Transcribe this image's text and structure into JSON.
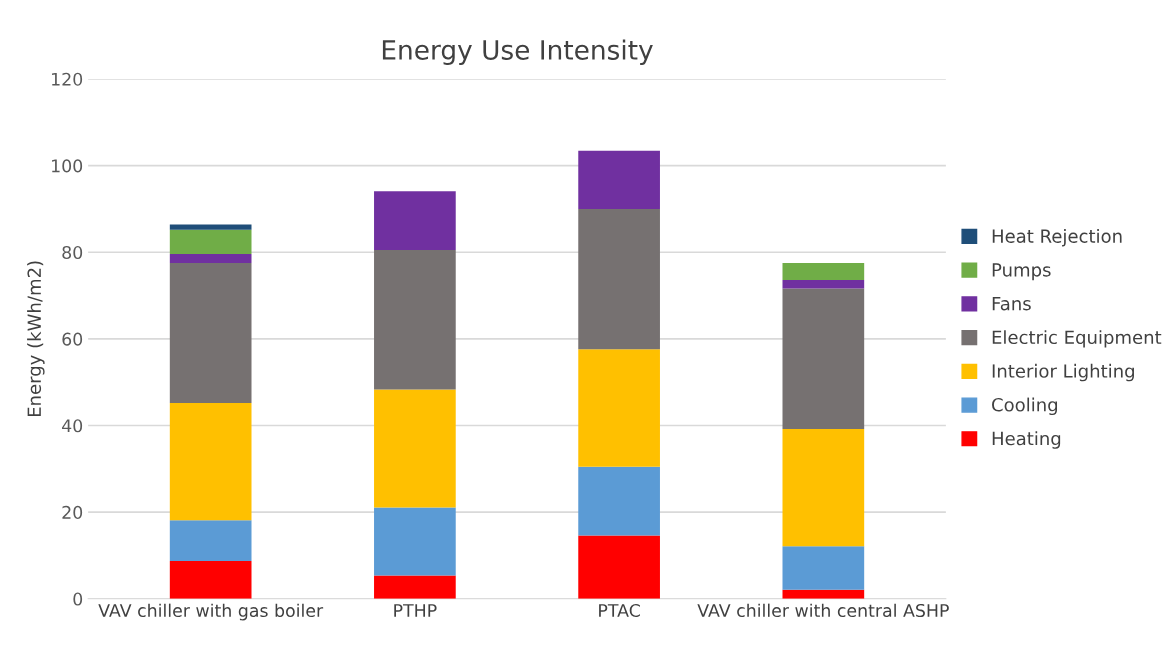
{
  "chart_data": {
    "type": "bar",
    "title": "Energy Use Intensity",
    "ylabel": "Energy (kWh/m2)",
    "stacked": true,
    "categories": [
      "VAV chiller with gas boiler",
      "PTHP",
      "PTAC",
      "VAV chiller with central ASHP"
    ],
    "series": [
      {
        "name": "Heating",
        "color": "#ff0000",
        "values": [
          8.7,
          5.4,
          14.6,
          2.1
        ]
      },
      {
        "name": "Cooling",
        "color": "#5b9bd5",
        "values": [
          9.4,
          15.7,
          15.9,
          10.0
        ]
      },
      {
        "name": "Interior Lighting",
        "color": "#ffc000",
        "values": [
          27.1,
          27.2,
          27.1,
          27.1
        ]
      },
      {
        "name": "Electric Equipment",
        "color": "#767171",
        "values": [
          32.3,
          32.2,
          32.4,
          32.4
        ]
      },
      {
        "name": "Fans",
        "color": "#7030a0",
        "values": [
          2.1,
          13.6,
          13.4,
          2.0
        ]
      },
      {
        "name": "Pumps",
        "color": "#70ad47",
        "values": [
          5.6,
          null,
          null,
          3.9
        ]
      },
      {
        "name": "Heat Rejection",
        "color": "#1f4e79",
        "values": [
          1.2,
          null,
          null,
          null
        ]
      }
    ],
    "ylim": [
      0,
      120
    ],
    "yticks": [
      0,
      20,
      40,
      60,
      80,
      100,
      120
    ],
    "grid": "y",
    "legend": "right"
  }
}
